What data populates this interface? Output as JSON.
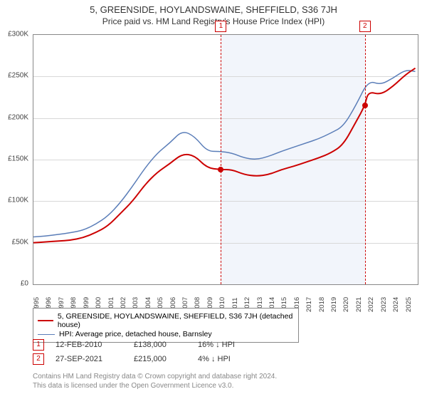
{
  "title": "5, GREENSIDE, HOYLANDSWAINE, SHEFFIELD, S36 7JH",
  "subtitle": "Price paid vs. HM Land Registry's House Price Index (HPI)",
  "chart": {
    "type": "line",
    "background_color": "#ffffff",
    "grid_color": "#d8d8d8",
    "border_color": "#888888",
    "ymin": 0,
    "ymax": 300,
    "ytick_step": 50,
    "yticks": [
      "£0",
      "£50K",
      "£100K",
      "£150K",
      "£200K",
      "£250K",
      "£300K"
    ],
    "xmin": 1995,
    "xmax": 2026,
    "xticks": [
      1995,
      1996,
      1997,
      1998,
      1999,
      2000,
      2001,
      2002,
      2003,
      2004,
      2005,
      2006,
      2007,
      2008,
      2009,
      2010,
      2011,
      2012,
      2013,
      2014,
      2015,
      2016,
      2017,
      2018,
      2019,
      2020,
      2021,
      2022,
      2023,
      2024,
      2025
    ],
    "shaded_region": {
      "color": "#e8edf7",
      "x_start": 2010.12,
      "x_end": 2021.74
    },
    "marker_line_color": "#cc0000",
    "marker_line_dash": "4,3",
    "series": [
      {
        "name": "property",
        "label": "5, GREENSIDE, HOYLANDSWAINE, SHEFFIELD, S36 7JH (detached house)",
        "color": "#cc0000",
        "line_width": 2,
        "years": [
          1995,
          1996,
          1997,
          1998,
          1999,
          2000,
          2001,
          2002,
          2003,
          2004,
          2005,
          2006,
          2007,
          2008,
          2009,
          2010.12,
          2011,
          2012,
          2013,
          2014,
          2015,
          2016,
          2017,
          2018,
          2019,
          2020,
          2021,
          2021.74,
          2022,
          2023,
          2024,
          2025,
          2025.8
        ],
        "values": [
          50,
          51,
          52,
          53,
          56,
          62,
          70,
          85,
          100,
          120,
          135,
          145,
          157,
          155,
          140,
          138,
          138,
          132,
          130,
          132,
          138,
          142,
          147,
          152,
          158,
          168,
          195,
          215,
          232,
          228,
          238,
          252,
          260
        ]
      },
      {
        "name": "hpi",
        "label": "HPI: Average price, detached house, Barnsley",
        "color": "#5a7db8",
        "line_width": 1.5,
        "years": [
          1995,
          1996,
          1997,
          1998,
          1999,
          2000,
          2001,
          2002,
          2003,
          2004,
          2005,
          2006,
          2007,
          2008,
          2009,
          2010,
          2011,
          2012,
          2013,
          2014,
          2015,
          2016,
          2017,
          2018,
          2019,
          2020,
          2021,
          2022,
          2023,
          2024,
          2025,
          2025.8
        ],
        "values": [
          57,
          58,
          60,
          62,
          65,
          72,
          82,
          98,
          118,
          140,
          158,
          170,
          185,
          178,
          160,
          160,
          158,
          152,
          150,
          154,
          160,
          165,
          170,
          175,
          182,
          190,
          215,
          245,
          240,
          248,
          258,
          256
        ]
      }
    ],
    "sale_points": [
      {
        "badge": "1",
        "x": 2010.12,
        "y": 138
      },
      {
        "badge": "2",
        "x": 2021.74,
        "y": 215
      }
    ]
  },
  "legend": {
    "items": [
      {
        "color": "#cc0000",
        "width": 2,
        "text": "5, GREENSIDE, HOYLANDSWAINE, SHEFFIELD, S36 7JH (detached house)"
      },
      {
        "color": "#5a7db8",
        "width": 1.5,
        "text": "HPI: Average price, detached house, Barnsley"
      }
    ]
  },
  "transactions": [
    {
      "badge": "1",
      "date": "12-FEB-2010",
      "price": "£138,000",
      "diff": "16% ↓ HPI"
    },
    {
      "badge": "2",
      "date": "27-SEP-2021",
      "price": "£215,000",
      "diff": "4% ↓ HPI"
    }
  ],
  "copyright": {
    "line1": "Contains HM Land Registry data © Crown copyright and database right 2024.",
    "line2": "This data is licensed under the Open Government Licence v3.0."
  }
}
